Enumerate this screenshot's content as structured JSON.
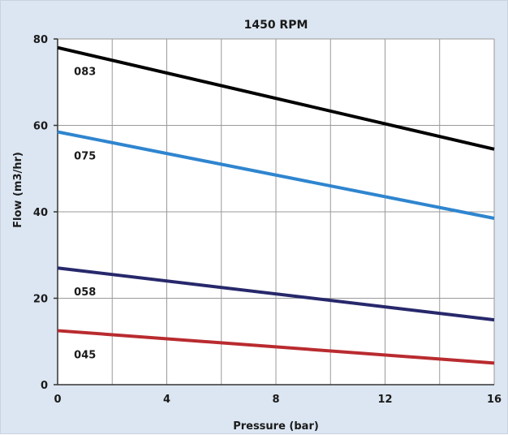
{
  "chart_data": {
    "type": "line",
    "title": "1450 RPM",
    "xlabel": "Pressure (bar)",
    "ylabel": "Flow (m3/hr)",
    "xlim": [
      0,
      16
    ],
    "ylim": [
      0,
      80
    ],
    "x_ticks": [
      "0",
      "4",
      "8",
      "12",
      "16"
    ],
    "y_ticks": [
      "0",
      "20",
      "40",
      "60",
      "80"
    ],
    "grid": true,
    "series": [
      {
        "name": "083",
        "color": "#000000",
        "x": [
          0,
          16
        ],
        "values": [
          78,
          54.5
        ]
      },
      {
        "name": "075",
        "color": "#2f85cf",
        "x": [
          0,
          16
        ],
        "values": [
          58.5,
          38.5
        ]
      },
      {
        "name": "058",
        "color": "#27286b",
        "x": [
          0,
          16
        ],
        "values": [
          27,
          15
        ]
      },
      {
        "name": "045",
        "color": "#b92b2f",
        "x": [
          0,
          16
        ],
        "values": [
          12.5,
          5
        ]
      }
    ]
  }
}
